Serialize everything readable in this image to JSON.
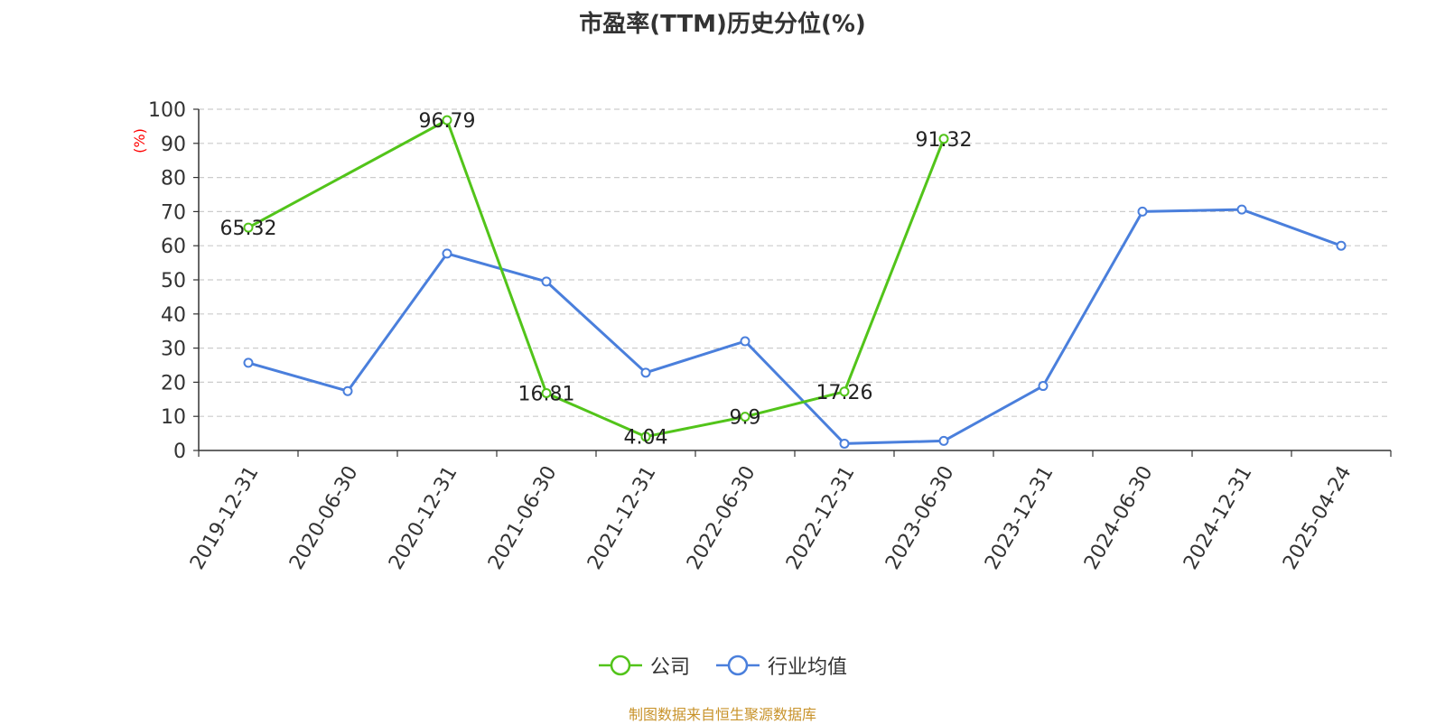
{
  "chart_data": {
    "type": "line",
    "title": "市盈率(TTM)历史分位(%)",
    "ylabel": "(%)",
    "xlabel": "",
    "ylim": [
      0,
      100
    ],
    "yticks": [
      0,
      10,
      20,
      30,
      40,
      50,
      60,
      70,
      80,
      90,
      100
    ],
    "grid": true,
    "legend_position": "bottom-center",
    "categories": [
      "2019-12-31",
      "2020-06-30",
      "2020-12-31",
      "2021-06-30",
      "2021-12-31",
      "2022-06-30",
      "2022-12-31",
      "2023-06-30",
      "2023-12-31",
      "2024-06-30",
      "2024-12-31",
      "2025-04-24"
    ],
    "series": [
      {
        "name": "公司",
        "color": "#52c41a",
        "values": [
          65.32,
          null,
          96.79,
          16.81,
          4.04,
          9.9,
          17.26,
          91.32,
          null,
          null,
          null,
          null
        ],
        "labels": [
          "65.32",
          null,
          "96.79",
          "16.81",
          "4.04",
          "9.9",
          "17.26",
          "91.32",
          null,
          null,
          null,
          null
        ]
      },
      {
        "name": "行业均值",
        "color": "#4a7fdc",
        "values": [
          25.7,
          17.4,
          57.7,
          49.5,
          22.8,
          32.0,
          2.0,
          2.8,
          18.9,
          70.0,
          70.6,
          60.0
        ]
      }
    ]
  },
  "source_note": "制图数据来自恒生聚源数据库"
}
